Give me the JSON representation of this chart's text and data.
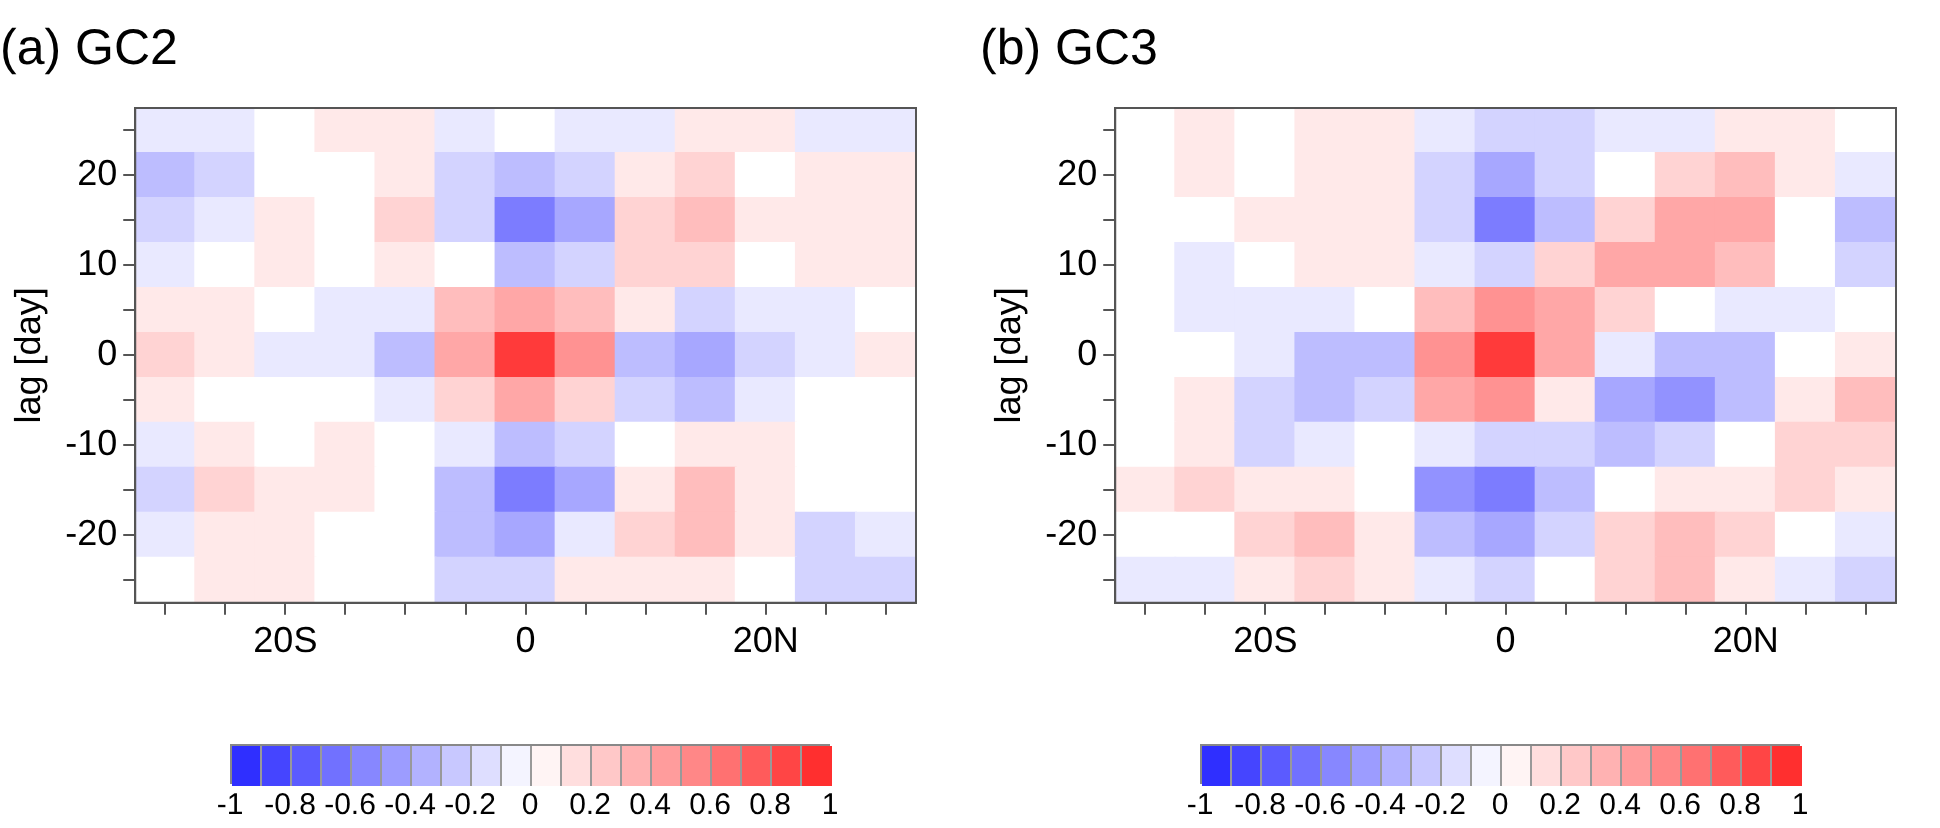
{
  "chart_data": [
    {
      "type": "heatmap",
      "title": "(a) GC2",
      "ylabel": "lag [day]",
      "categories": [
        null,
        null,
        "20S",
        null,
        null,
        null,
        "0",
        null,
        null,
        null,
        "20N",
        null,
        null
      ],
      "y_categories": [
        null,
        "20",
        null,
        "10",
        null,
        "0",
        null,
        "-10",
        null,
        "-20",
        null
      ],
      "cells": [
        [
          -0.1,
          -0.1,
          0,
          0.1,
          0.1,
          -0.1,
          0,
          -0.1,
          -0.1,
          0.1,
          0.1,
          -0.1,
          -0.1
        ],
        [
          -0.3,
          -0.2,
          0,
          0,
          0.1,
          -0.2,
          -0.3,
          -0.2,
          0.1,
          0.2,
          0,
          0.1,
          0.1
        ],
        [
          -0.2,
          -0.1,
          0.1,
          0,
          0.2,
          -0.2,
          -0.6,
          -0.4,
          0.2,
          0.3,
          0.1,
          0.1,
          0.1
        ],
        [
          -0.1,
          0,
          0.1,
          0,
          0.1,
          0,
          -0.3,
          -0.2,
          0.2,
          0.2,
          0,
          0.1,
          0.1
        ],
        [
          0.1,
          0.1,
          0,
          -0.1,
          -0.1,
          0.3,
          0.4,
          0.3,
          0.1,
          -0.2,
          -0.1,
          -0.1,
          0
        ],
        [
          0.2,
          0.1,
          -0.1,
          -0.1,
          -0.3,
          0.4,
          0.9,
          0.5,
          -0.3,
          -0.4,
          -0.2,
          -0.1,
          0.1
        ],
        [
          0.1,
          0,
          0,
          0,
          -0.1,
          0.2,
          0.4,
          0.2,
          -0.2,
          -0.3,
          -0.1,
          0,
          0
        ],
        [
          -0.1,
          0.1,
          0,
          0.1,
          0,
          -0.1,
          -0.3,
          -0.2,
          0,
          0.1,
          0.1,
          0,
          0
        ],
        [
          -0.2,
          0.2,
          0.1,
          0.1,
          0,
          -0.3,
          -0.6,
          -0.4,
          0.1,
          0.3,
          0.1,
          0,
          0
        ],
        [
          -0.1,
          0.1,
          0.1,
          0,
          0,
          -0.3,
          -0.4,
          -0.1,
          0.2,
          0.3,
          0.1,
          -0.2,
          -0.1
        ],
        [
          0,
          0.1,
          0.1,
          0,
          0,
          -0.2,
          -0.2,
          0.1,
          0.1,
          0.1,
          0,
          -0.2,
          -0.2
        ]
      ],
      "clim": [
        -1,
        1
      ],
      "cticks": [
        -1,
        -0.8,
        -0.6,
        -0.4,
        -0.2,
        0,
        0.2,
        0.4,
        0.6,
        0.8,
        1
      ]
    },
    {
      "type": "heatmap",
      "title": "(b) GC3",
      "ylabel": "lag [day]",
      "categories": [
        null,
        null,
        "20S",
        null,
        null,
        null,
        "0",
        null,
        null,
        null,
        "20N",
        null,
        null
      ],
      "y_categories": [
        null,
        "20",
        null,
        "10",
        null,
        "0",
        null,
        "-10",
        null,
        "-20",
        null
      ],
      "cells": [
        [
          0,
          0.1,
          0,
          0.1,
          0.1,
          -0.1,
          -0.2,
          -0.2,
          -0.1,
          -0.1,
          0.1,
          0.1,
          0
        ],
        [
          0,
          0.1,
          0,
          0.1,
          0.1,
          -0.2,
          -0.4,
          -0.2,
          0,
          0.2,
          0.3,
          0.1,
          -0.1
        ],
        [
          0,
          0,
          0.1,
          0.1,
          0.1,
          -0.2,
          -0.6,
          -0.3,
          0.2,
          0.4,
          0.4,
          0,
          -0.3
        ],
        [
          0,
          -0.1,
          0,
          0.1,
          0.1,
          -0.1,
          -0.2,
          0.2,
          0.4,
          0.4,
          0.3,
          0,
          -0.2
        ],
        [
          0,
          -0.1,
          -0.1,
          -0.1,
          0,
          0.3,
          0.5,
          0.4,
          0.2,
          0,
          -0.1,
          -0.1,
          0
        ],
        [
          0,
          0,
          -0.1,
          -0.3,
          -0.3,
          0.5,
          0.9,
          0.4,
          -0.1,
          -0.3,
          -0.3,
          0,
          0.1
        ],
        [
          0,
          0.1,
          -0.2,
          -0.3,
          -0.2,
          0.4,
          0.5,
          0.1,
          -0.4,
          -0.5,
          -0.3,
          0.1,
          0.3
        ],
        [
          0,
          0.1,
          -0.2,
          -0.1,
          0,
          -0.1,
          -0.2,
          -0.2,
          -0.3,
          -0.2,
          0,
          0.2,
          0.2
        ],
        [
          0.1,
          0.2,
          0.1,
          0.1,
          0,
          -0.5,
          -0.6,
          -0.3,
          0,
          0.1,
          0.1,
          0.2,
          0.1
        ],
        [
          0,
          0,
          0.2,
          0.3,
          0.1,
          -0.3,
          -0.4,
          -0.2,
          0.2,
          0.3,
          0.2,
          0,
          -0.1
        ],
        [
          -0.1,
          -0.1,
          0.1,
          0.2,
          0.1,
          -0.1,
          -0.2,
          0,
          0.2,
          0.3,
          0.1,
          -0.1,
          -0.2
        ]
      ],
      "clim": [
        -1,
        1
      ],
      "cticks": [
        -1,
        -0.8,
        -0.6,
        -0.4,
        -0.2,
        0,
        0.2,
        0.4,
        0.6,
        0.8,
        1
      ]
    }
  ]
}
